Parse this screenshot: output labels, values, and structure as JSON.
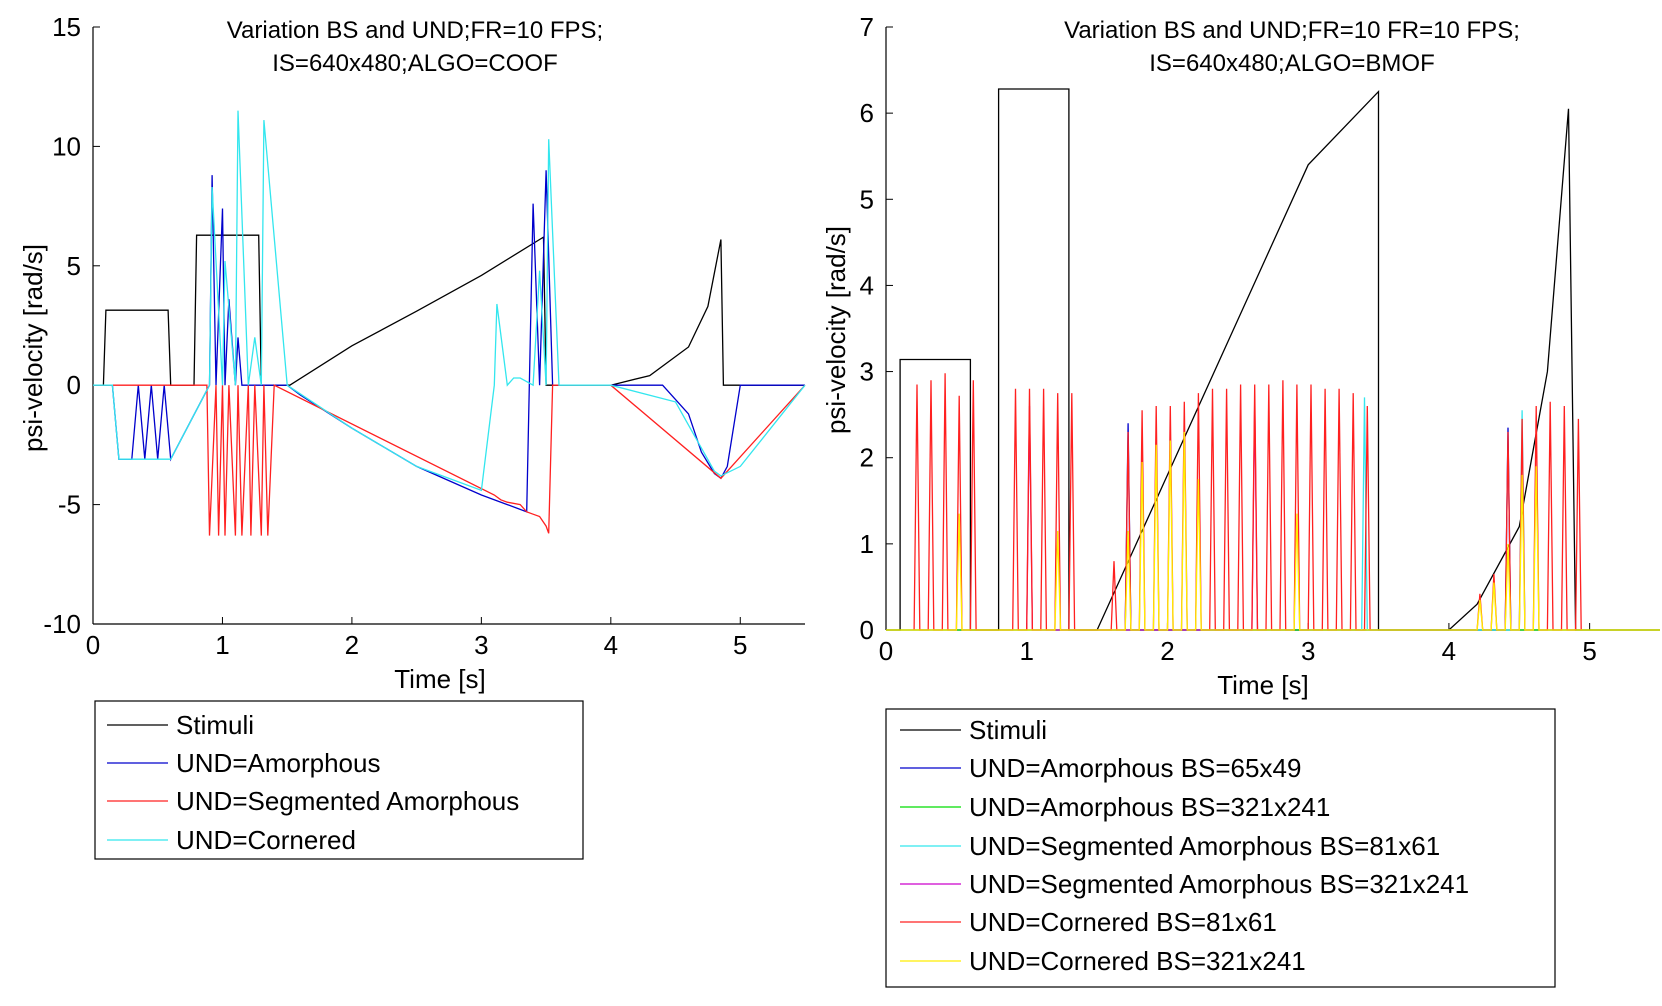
{
  "chart_data": [
    {
      "type": "line",
      "title": [
        "Variation BS and UND;FR=10 FPS;",
        "IS=640x480;ALGO=COOF"
      ],
      "xlabel": "Time [s]",
      "ylabel": "psi-velocity [rad/s]",
      "xlim": [
        0,
        5.5
      ],
      "ylim": [
        -10,
        15
      ],
      "xticks": [
        0,
        1,
        2,
        3,
        4,
        5
      ],
      "yticks": [
        -10,
        -5,
        0,
        5,
        10,
        15
      ],
      "grid": false,
      "legend_position": "below",
      "series": [
        {
          "name": "Stimuli",
          "color": "#000000",
          "x": [
            0,
            0.08,
            0.1,
            0.58,
            0.6,
            0.78,
            0.8,
            1.28,
            1.3,
            1.5,
            1.52,
            2.0,
            2.5,
            3.0,
            3.48,
            3.5,
            4.0,
            4.3,
            4.6,
            4.75,
            4.85,
            4.87,
            5.5
          ],
          "y": [
            0,
            0,
            3.14,
            3.14,
            0,
            0,
            6.28,
            6.28,
            0,
            0,
            0,
            1.65,
            3.1,
            4.6,
            6.2,
            0,
            0,
            0.4,
            1.6,
            3.3,
            6.1,
            0,
            0
          ]
        },
        {
          "name": "UND=Amorphous",
          "color": "#0000cc",
          "x": [
            0,
            0.15,
            0.2,
            0.3,
            0.35,
            0.4,
            0.45,
            0.5,
            0.55,
            0.6,
            0.9,
            0.92,
            0.95,
            1.0,
            1.02,
            1.05,
            1.1,
            1.12,
            1.15,
            1.2,
            1.3,
            1.32,
            1.35,
            1.5,
            1.6,
            2.0,
            2.5,
            3.0,
            3.2,
            3.35,
            3.4,
            3.45,
            3.5,
            3.55,
            3.6,
            4.0,
            4.4,
            4.6,
            4.7,
            4.8,
            4.85,
            4.9,
            5.0,
            5.5
          ],
          "y": [
            0,
            0,
            -3.1,
            -3.1,
            0,
            -3.1,
            0,
            -3.1,
            0,
            -3.1,
            0,
            8.8,
            0,
            7.4,
            0,
            3.6,
            0,
            2.0,
            0,
            0,
            0,
            0,
            0,
            0,
            -0.4,
            -1.8,
            -3.4,
            -4.6,
            -5.0,
            -5.3,
            7.6,
            0,
            9.0,
            0,
            0,
            0,
            0,
            -1.2,
            -2.8,
            -3.7,
            -3.9,
            -3.4,
            0,
            0
          ]
        },
        {
          "name": "UND=Segmented Amorphous",
          "color": "#ff2020",
          "x": [
            0,
            0.88,
            0.9,
            0.95,
            0.97,
            1.0,
            1.02,
            1.05,
            1.1,
            1.12,
            1.15,
            1.2,
            1.22,
            1.25,
            1.3,
            1.32,
            1.35,
            1.4,
            3.1,
            3.15,
            3.2,
            3.3,
            3.35,
            3.4,
            3.45,
            3.5,
            3.52,
            3.55,
            3.6,
            4.0,
            4.85,
            5.5
          ],
          "y": [
            0,
            0,
            -6.3,
            0,
            -6.3,
            0,
            -6.3,
            0,
            -6.3,
            0,
            -6.3,
            0,
            -6.3,
            0,
            -6.3,
            0,
            -6.3,
            0,
            -4.6,
            -4.8,
            -4.9,
            -5.0,
            -5.3,
            -5.4,
            -5.5,
            -5.9,
            -6.2,
            0,
            0,
            0,
            -3.9,
            0
          ]
        },
        {
          "name": "UND=Cornered",
          "color": "#33e6ee",
          "x": [
            0,
            0.15,
            0.2,
            0.3,
            0.6,
            0.9,
            0.92,
            1.0,
            1.02,
            1.1,
            1.12,
            1.2,
            1.25,
            1.3,
            1.32,
            1.5,
            2.0,
            2.5,
            3.0,
            3.1,
            3.12,
            3.2,
            3.25,
            3.3,
            3.4,
            3.45,
            3.5,
            3.52,
            3.6,
            4.0,
            4.5,
            4.8,
            4.85,
            5.0,
            5.5
          ],
          "y": [
            0,
            0,
            -3.1,
            -3.1,
            -3.1,
            0,
            8.3,
            0,
            5.2,
            0,
            11.5,
            0,
            2.0,
            0,
            11.1,
            0,
            -1.8,
            -3.4,
            -4.4,
            0,
            3.4,
            0,
            0.3,
            0.3,
            0,
            4.8,
            0,
            10.3,
            0,
            0,
            -0.7,
            -3.6,
            -3.8,
            -3.4,
            0
          ]
        }
      ]
    },
    {
      "type": "line",
      "title": [
        "Variation BS and UND;FR=10 FR=10 FPS;",
        "IS=640x480;ALGO=BMOF"
      ],
      "xlabel": "Time [s]",
      "ylabel": "psi-velocity [rad/s]",
      "xlim": [
        0,
        5.5
      ],
      "ylim": [
        0,
        7
      ],
      "xticks": [
        0,
        1,
        2,
        3,
        4,
        5
      ],
      "yticks": [
        0,
        1,
        2,
        3,
        4,
        5,
        6,
        7
      ],
      "grid": false,
      "legend_position": "below",
      "series": [
        {
          "name": "Stimuli",
          "color": "#000000",
          "x": [
            0,
            0.1,
            0.1,
            0.6,
            0.6,
            0.8,
            0.8,
            1.3,
            1.3,
            1.5,
            2.0,
            2.5,
            3.0,
            3.5,
            3.5,
            4.0,
            4.2,
            4.5,
            4.7,
            4.85,
            4.9,
            5.5
          ],
          "y": [
            0,
            0,
            3.14,
            3.14,
            0,
            0,
            6.28,
            6.28,
            0,
            0,
            1.8,
            3.6,
            5.4,
            6.25,
            0,
            0,
            0.3,
            1.2,
            3.0,
            6.05,
            0,
            0
          ]
        },
        {
          "name": "UND=Amorphous BS=65x49",
          "color": "#0000cc",
          "x": [
            1.7,
            1.72,
            1.74,
            4.4,
            4.42,
            4.44
          ],
          "y": [
            0,
            2.4,
            0,
            0,
            2.35,
            0
          ]
        },
        {
          "name": "UND=Amorphous BS=321x241",
          "color": "#00dd00",
          "x": [
            0,
            5.5
          ],
          "y": [
            0,
            0
          ]
        },
        {
          "name": "UND=Segmented Amorphous BS=81x61",
          "color": "#33e6ee",
          "x": [
            3.38,
            3.4,
            3.42,
            4.5,
            4.52,
            4.54
          ],
          "y": [
            0,
            2.7,
            0,
            0,
            2.55,
            0
          ]
        },
        {
          "name": "UND=Segmented Amorphous BS=321x241",
          "color": "#cc00cc",
          "x": [
            1.0,
            1.02,
            1.04,
            2.6,
            2.62,
            2.64
          ],
          "y": [
            0,
            2.6,
            0,
            0,
            2.65,
            0
          ]
        },
        {
          "name": "UND=Cornered BS=81x61",
          "color": "#ff2020",
          "x": [
            0.2,
            0.22,
            0.24,
            0.3,
            0.32,
            0.34,
            0.4,
            0.42,
            0.44,
            0.5,
            0.52,
            0.54,
            0.6,
            0.62,
            0.64,
            0.9,
            0.92,
            0.94,
            1.0,
            1.02,
            1.04,
            1.1,
            1.12,
            1.14,
            1.2,
            1.22,
            1.24,
            1.3,
            1.32,
            1.34,
            1.6,
            1.62,
            1.64,
            1.7,
            1.72,
            1.74,
            1.8,
            1.82,
            1.84,
            1.9,
            1.92,
            1.94,
            2.0,
            2.02,
            2.04,
            2.1,
            2.12,
            2.14,
            2.2,
            2.22,
            2.24,
            2.3,
            2.32,
            2.34,
            2.4,
            2.42,
            2.44,
            2.5,
            2.52,
            2.54,
            2.6,
            2.62,
            2.64,
            2.7,
            2.72,
            2.74,
            2.8,
            2.82,
            2.84,
            2.9,
            2.92,
            2.94,
            3.0,
            3.02,
            3.04,
            3.1,
            3.12,
            3.14,
            3.2,
            3.22,
            3.24,
            3.3,
            3.32,
            3.34,
            3.4,
            3.42,
            3.44,
            4.2,
            4.22,
            4.24,
            4.3,
            4.32,
            4.34,
            4.4,
            4.42,
            4.44,
            4.5,
            4.52,
            4.54,
            4.6,
            4.62,
            4.64,
            4.7,
            4.72,
            4.74,
            4.8,
            4.82,
            4.84,
            4.9,
            4.92,
            4.94
          ],
          "y": [
            0,
            2.85,
            0,
            0,
            2.9,
            0,
            0,
            2.98,
            0,
            0,
            2.72,
            0,
            0,
            2.9,
            0,
            0,
            2.8,
            0,
            0,
            2.8,
            0,
            0,
            2.8,
            0,
            0,
            2.75,
            0,
            0,
            2.75,
            0,
            0,
            0.8,
            0,
            0,
            2.3,
            0,
            0,
            2.55,
            0,
            0,
            2.6,
            0,
            0,
            2.6,
            0,
            0,
            2.65,
            0,
            0,
            2.75,
            0,
            0,
            2.8,
            0,
            0,
            2.8,
            0,
            0,
            2.85,
            0,
            0,
            2.85,
            0,
            0,
            2.85,
            0,
            0,
            2.9,
            0,
            0,
            2.85,
            0,
            0,
            2.85,
            0,
            0,
            2.8,
            0,
            0,
            2.8,
            0,
            0,
            2.75,
            0,
            0,
            2.6,
            0,
            0,
            0.42,
            0,
            0,
            0.65,
            0,
            0,
            2.3,
            0,
            0,
            2.45,
            0,
            0,
            2.6,
            0,
            0,
            2.65,
            0,
            0,
            2.6,
            0,
            0,
            2.45,
            0
          ]
        },
        {
          "name": "UND=Cornered BS=321x241",
          "color": "#ffee00",
          "x": [
            0,
            0.5,
            0.52,
            0.54,
            1.2,
            1.22,
            1.24,
            1.7,
            1.72,
            1.74,
            1.8,
            1.82,
            1.84,
            1.9,
            1.92,
            1.94,
            2.0,
            2.02,
            2.04,
            2.1,
            2.12,
            2.14,
            2.2,
            2.22,
            2.24,
            2.9,
            2.92,
            2.94,
            4.2,
            4.22,
            4.24,
            4.3,
            4.32,
            4.34,
            4.4,
            4.42,
            4.44,
            4.5,
            4.52,
            4.54,
            4.6,
            4.62,
            4.64,
            5.5
          ],
          "y": [
            0,
            0,
            1.35,
            0,
            0,
            1.15,
            0,
            0,
            1.15,
            0,
            0,
            1.95,
            0,
            0,
            2.15,
            0,
            0,
            2.2,
            0,
            0,
            2.3,
            0,
            0,
            1.75,
            0,
            0,
            1.35,
            0,
            0,
            0.35,
            0,
            0,
            0.55,
            0,
            0,
            1.0,
            0,
            0,
            1.8,
            0,
            0,
            1.9,
            0,
            0
          ]
        }
      ]
    }
  ]
}
